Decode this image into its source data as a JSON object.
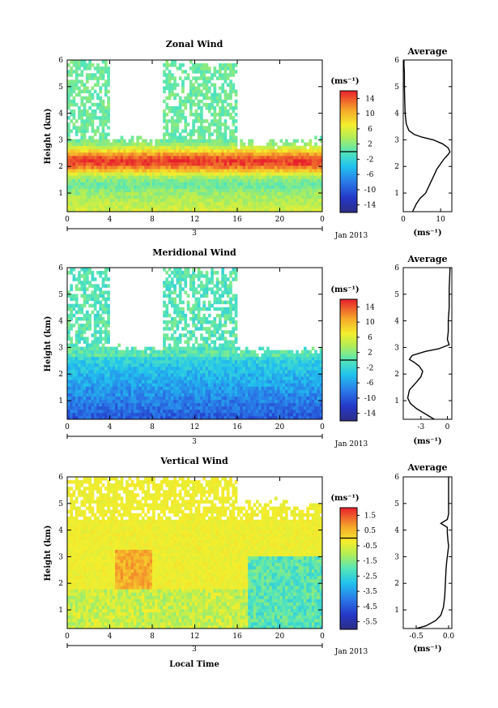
{
  "figure": {
    "bottom_xlabel": "Local Time",
    "date_label": "Jan 2013",
    "day_marker": "3",
    "ylabel": "Height (km)",
    "cbar_unit": "(ms⁻¹)",
    "avg_xunit": "(ms⁻¹)"
  },
  "chart_data": [
    {
      "type": "heatmap",
      "title": "Zonal Wind",
      "ylabel": "Height (km)",
      "xlim": [
        0,
        24
      ],
      "ylim": [
        0.3,
        6
      ],
      "x_ticks": [
        "0",
        "4",
        "8",
        "12",
        "16",
        "20",
        "0"
      ],
      "y_ticks": [
        "1",
        "2",
        "3",
        "4",
        "5",
        "6"
      ],
      "colorbar": {
        "ticks": [
          "14",
          "10",
          "6",
          "2",
          "-2",
          "-6",
          "-10",
          "-14"
        ],
        "range": [
          -16,
          16
        ]
      },
      "coverage_regions": [
        {
          "t0": 0,
          "t1": 4,
          "hmax": 6
        },
        {
          "t0": 4,
          "t1": 9,
          "hmax": 3
        },
        {
          "t0": 9,
          "t1": 16,
          "hmax": 6
        },
        {
          "t0": 16,
          "t1": 24,
          "hmax": 2.9
        }
      ],
      "profile": {
        "mode": "zonal",
        "surface": 2,
        "peak": 15,
        "peak_height": 2.2,
        "aloft": 1
      }
    },
    {
      "type": "line",
      "title": "Average",
      "xlabel": "(ms⁻¹)",
      "xlim": [
        0,
        13
      ],
      "ylim": [
        0.3,
        6
      ],
      "x_ticks": [
        "0",
        "10"
      ],
      "y_ticks": [
        "1",
        "2",
        "3",
        "4",
        "5",
        "6"
      ],
      "x": [
        2.5,
        3.5,
        4.5,
        6,
        7,
        8,
        9,
        10,
        11,
        12,
        12.5,
        12,
        10.5,
        8,
        5,
        3,
        1.5,
        0.8,
        0.5,
        0.4,
        0.3,
        0.3,
        0.2,
        0.2
      ],
      "y": [
        0.3,
        0.6,
        0.8,
        1.0,
        1.3,
        1.6,
        1.9,
        2.1,
        2.3,
        2.45,
        2.55,
        2.7,
        2.85,
        3.0,
        3.1,
        3.2,
        3.35,
        3.6,
        4.0,
        4.5,
        5.0,
        5.5,
        5.8,
        6.0
      ]
    },
    {
      "type": "heatmap",
      "title": "Meridional Wind",
      "ylabel": "Height (km)",
      "xlim": [
        0,
        24
      ],
      "ylim": [
        0.3,
        6
      ],
      "x_ticks": [
        "0",
        "4",
        "8",
        "12",
        "16",
        "20",
        "0"
      ],
      "y_ticks": [
        "1",
        "2",
        "3",
        "4",
        "5",
        "6"
      ],
      "colorbar": {
        "ticks": [
          "14",
          "10",
          "6",
          "2",
          "-2",
          "-6",
          "-10",
          "-14"
        ],
        "range": [
          -16,
          16
        ]
      },
      "coverage_regions": [
        {
          "t0": 0,
          "t1": 4,
          "hmax": 6
        },
        {
          "t0": 4,
          "t1": 9,
          "hmax": 3
        },
        {
          "t0": 9,
          "t1": 16,
          "hmax": 6
        },
        {
          "t0": 16,
          "t1": 24,
          "hmax": 2.9
        }
      ],
      "profile": {
        "mode": "meridional",
        "surface": -10,
        "aloft": 0
      }
    },
    {
      "type": "line",
      "title": "Average",
      "xlabel": "(ms⁻¹)",
      "xlim": [
        -5,
        0.5
      ],
      "ylim": [
        0.3,
        6
      ],
      "x_ticks": [
        "-3",
        "0"
      ],
      "y_ticks": [
        "1",
        "2",
        "3",
        "4",
        "5",
        "6"
      ],
      "x": [
        -1.5,
        -2.5,
        -3.5,
        -4.2,
        -4.5,
        -4.3,
        -3.5,
        -3.0,
        -2.8,
        -3.2,
        -3.8,
        -4.3,
        -4.0,
        -2.5,
        -1.0,
        0.2,
        0.0,
        0.1,
        0.1,
        0.2,
        0.2,
        0.3
      ],
      "y": [
        0.3,
        0.5,
        0.7,
        0.9,
        1.1,
        1.4,
        1.7,
        1.9,
        2.1,
        2.3,
        2.45,
        2.55,
        2.7,
        2.85,
        2.95,
        3.1,
        3.3,
        3.6,
        4.0,
        4.5,
        5.2,
        6.0
      ]
    },
    {
      "type": "heatmap",
      "title": "Vertical Wind",
      "ylabel": "Height (km)",
      "xlabel": "Local Time",
      "xlim": [
        0,
        24
      ],
      "ylim": [
        0.3,
        6
      ],
      "x_ticks": [
        "0",
        "4",
        "8",
        "12",
        "16",
        "20",
        "0"
      ],
      "y_ticks": [
        "1",
        "2",
        "3",
        "4",
        "5",
        "6"
      ],
      "colorbar": {
        "ticks": [
          "1.5",
          "0.5",
          "-0.5",
          "-1.5",
          "-2.5",
          "-3.5",
          "-4.5",
          "-5.5"
        ],
        "range": [
          -6,
          2
        ]
      },
      "coverage_regions": [
        {
          "t0": 0,
          "t1": 16,
          "hmax": 6
        },
        {
          "t0": 16,
          "t1": 24,
          "hmax": 5
        }
      ],
      "profile": {
        "mode": "vertical",
        "surface": -0.8,
        "aloft": 0
      }
    },
    {
      "type": "line",
      "title": "Average",
      "xlabel": "(ms⁻¹)",
      "xlim": [
        -0.7,
        0.05
      ],
      "ylim": [
        0.3,
        6
      ],
      "x_ticks": [
        "-0.5",
        "0.0"
      ],
      "y_ticks": [
        "1",
        "2",
        "3",
        "4",
        "5",
        "6"
      ],
      "x": [
        -0.5,
        -0.35,
        -0.2,
        -0.12,
        -0.08,
        -0.06,
        -0.05,
        -0.04,
        -0.03,
        -0.02,
        -0.01,
        0.0,
        -0.01,
        -0.02,
        -0.02,
        -0.12,
        -0.02,
        0.0,
        0.0,
        0.0,
        0.0
      ],
      "y": [
        0.3,
        0.4,
        0.6,
        0.8,
        1.1,
        1.5,
        2.0,
        2.5,
        2.8,
        3.0,
        3.2,
        3.4,
        3.6,
        3.9,
        4.1,
        4.25,
        4.4,
        4.6,
        5.0,
        5.5,
        6.0
      ]
    }
  ]
}
